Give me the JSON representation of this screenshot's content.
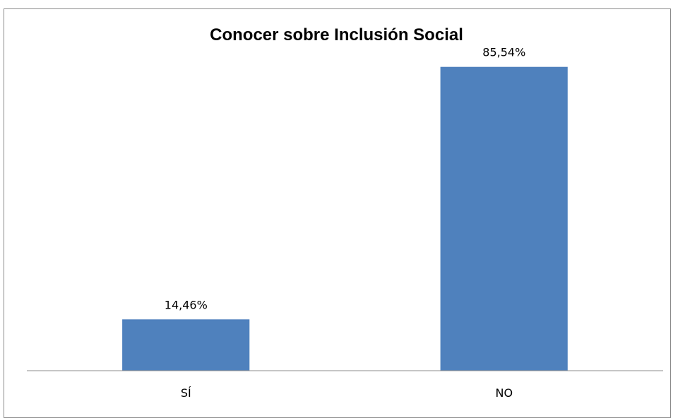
{
  "chart_data": {
    "type": "bar",
    "title": "Conocer sobre Inclusión Social",
    "categories": [
      "SÍ",
      "NO"
    ],
    "values": [
      14.46,
      85.54
    ],
    "data_labels": [
      "14,46%",
      "85,54%"
    ],
    "ylim": [
      0,
      100
    ],
    "xlabel": "",
    "ylabel": "",
    "grid": false,
    "legend": "none",
    "colors": {
      "bar": "#4f81bd",
      "axis": "#8c8c8c"
    }
  }
}
